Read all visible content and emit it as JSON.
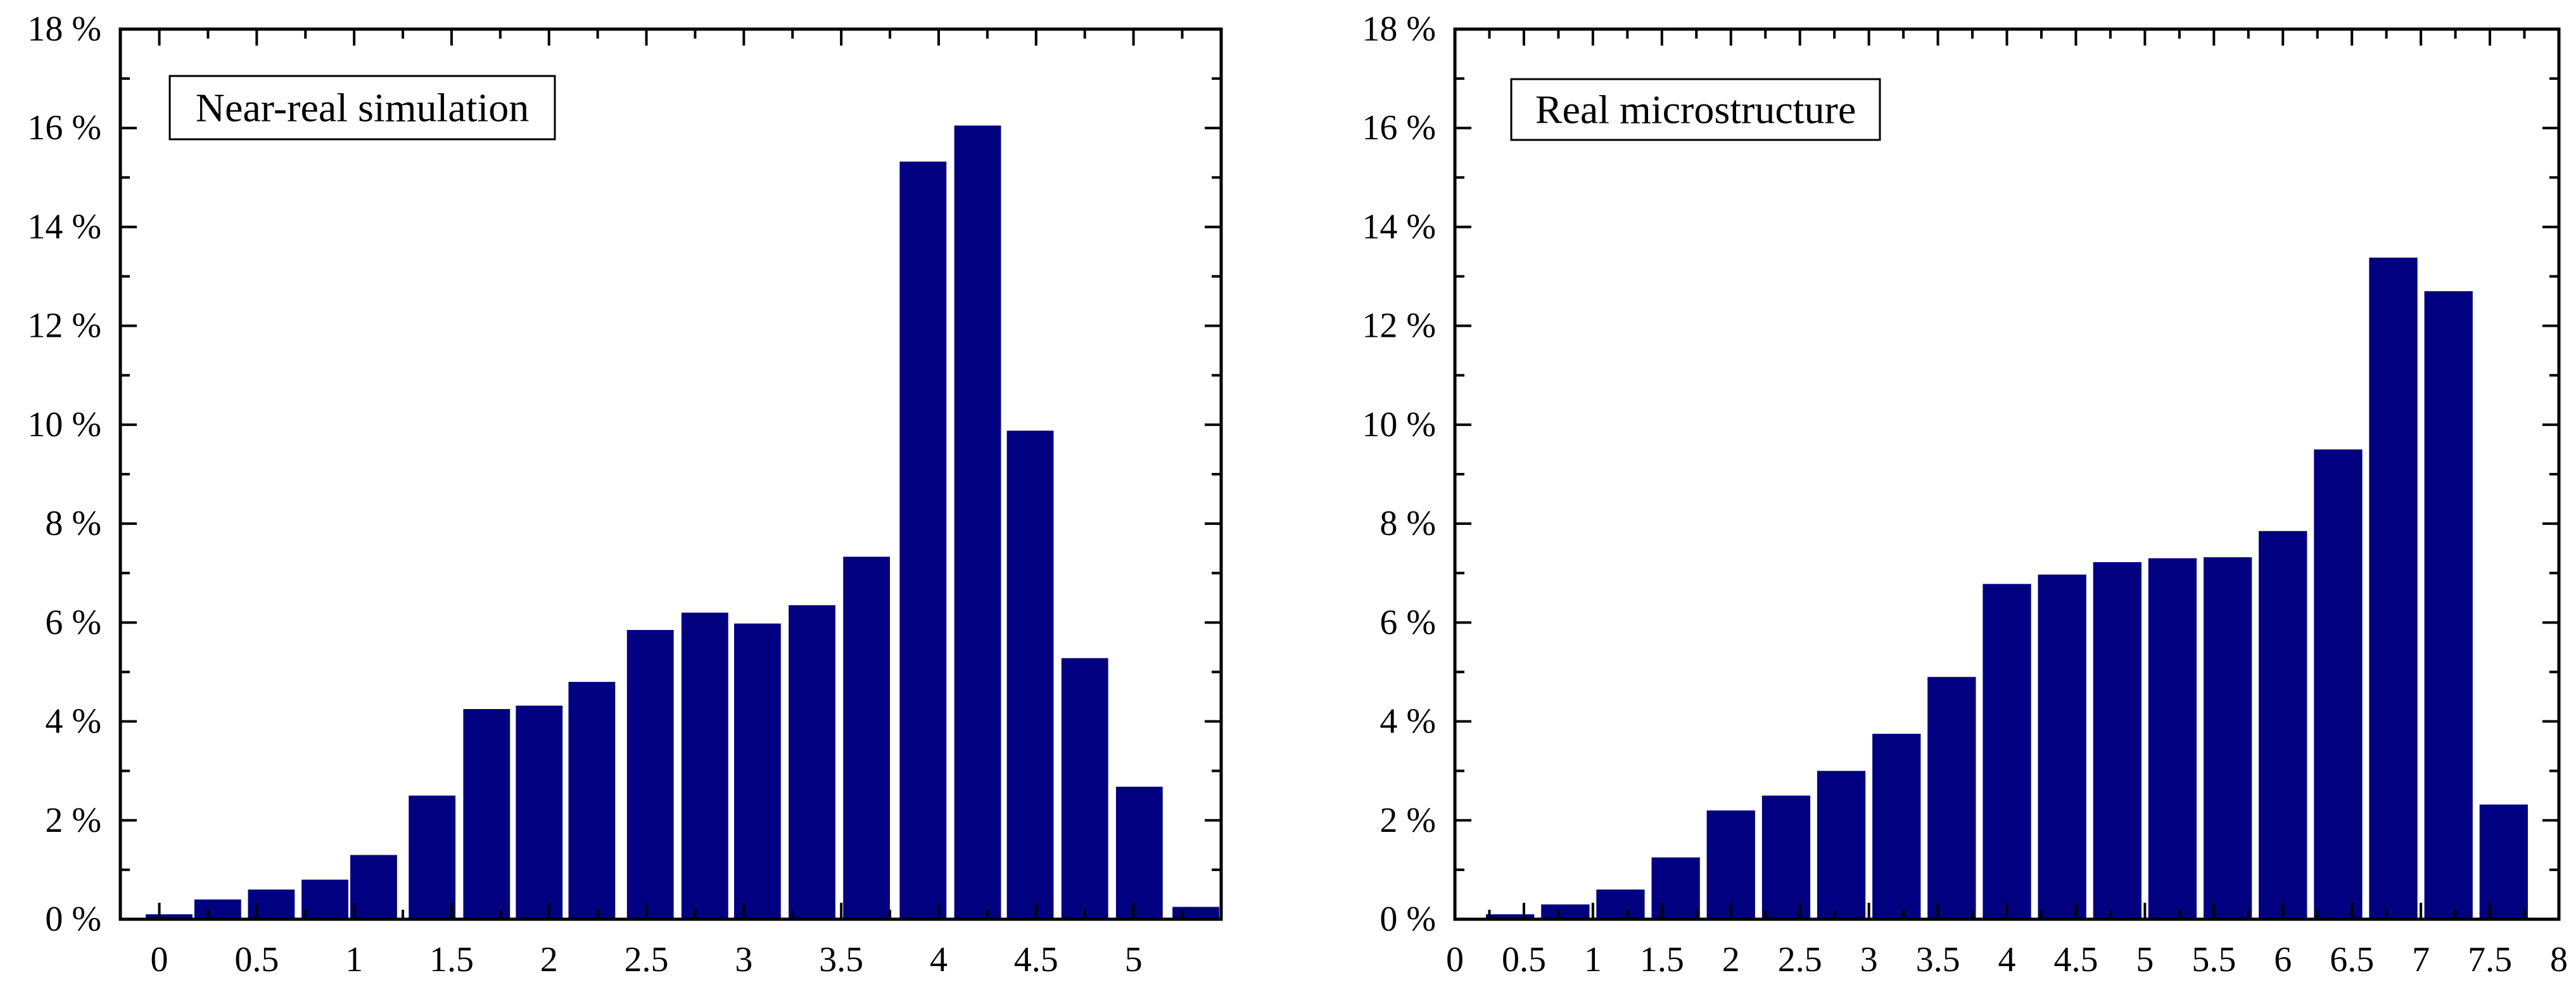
{
  "bar_color": "#000080",
  "chart_data": [
    {
      "type": "bar",
      "legend_label": "Near-real simulation",
      "legend_position": "top-left",
      "x": [
        0.05,
        0.3,
        0.575,
        0.85,
        1.1,
        1.4,
        1.68,
        1.95,
        2.22,
        2.52,
        2.8,
        3.07,
        3.35,
        3.63,
        3.92,
        4.2,
        4.47,
        4.75,
        5.03,
        5.32
      ],
      "values": [
        0.1,
        0.4,
        0.6,
        0.8,
        1.3,
        2.5,
        4.25,
        4.32,
        4.8,
        5.85,
        6.2,
        5.98,
        6.35,
        7.33,
        15.32,
        16.05,
        9.88,
        5.28,
        2.68,
        0.25
      ],
      "bar_width": 0.24,
      "xlim": [
        -0.2,
        5.45
      ],
      "ylim": [
        0,
        18
      ],
      "x_ticks": [
        0,
        0.5,
        1,
        1.5,
        2,
        2.5,
        3,
        3.5,
        4,
        4.5,
        5
      ],
      "x_tick_labels": [
        "0",
        "0.5",
        "1",
        "1.5",
        "2",
        "2.5",
        "3",
        "3.5",
        "4",
        "4.5",
        "5"
      ],
      "y_ticks": [
        0,
        2,
        4,
        6,
        8,
        10,
        12,
        14,
        16,
        18
      ],
      "y_tick_labels": [
        "0 %",
        "2 %",
        "4 %",
        "6 %",
        "8 %",
        "10 %",
        "12 %",
        "14 %",
        "16 %",
        "18 %"
      ],
      "grid": false
    },
    {
      "type": "bar",
      "legend_label": "Real microstructure",
      "legend_position": "top-left",
      "x": [
        0.4,
        0.8,
        1.2,
        1.6,
        2.0,
        2.4,
        2.8,
        3.2,
        3.6,
        4.0,
        4.4,
        4.8,
        5.2,
        5.6,
        6.0,
        6.4,
        6.8,
        7.2,
        7.6
      ],
      "values": [
        0.1,
        0.3,
        0.6,
        1.25,
        2.2,
        2.5,
        3.0,
        3.75,
        4.9,
        6.78,
        6.97,
        7.22,
        7.3,
        7.32,
        7.85,
        9.5,
        13.38,
        12.7,
        2.32
      ],
      "bar_width": 0.35,
      "xlim": [
        0,
        8
      ],
      "ylim": [
        0,
        18
      ],
      "x_ticks": [
        0,
        0.5,
        1,
        1.5,
        2,
        2.5,
        3,
        3.5,
        4,
        4.5,
        5,
        5.5,
        6,
        6.5,
        7,
        7.5,
        8
      ],
      "x_tick_labels": [
        "0",
        "0.5",
        "1",
        "1.5",
        "2",
        "2.5",
        "3",
        "3.5",
        "4",
        "4.5",
        "5",
        "5.5",
        "6",
        "6.5",
        "7",
        "7.5",
        "8"
      ],
      "y_ticks": [
        0,
        2,
        4,
        6,
        8,
        10,
        12,
        14,
        16,
        18
      ],
      "y_tick_labels": [
        "0 %",
        "2 %",
        "4 %",
        "6 %",
        "8 %",
        "10 %",
        "12 %",
        "14 %",
        "16 %",
        "18 %"
      ],
      "grid": false
    }
  ]
}
